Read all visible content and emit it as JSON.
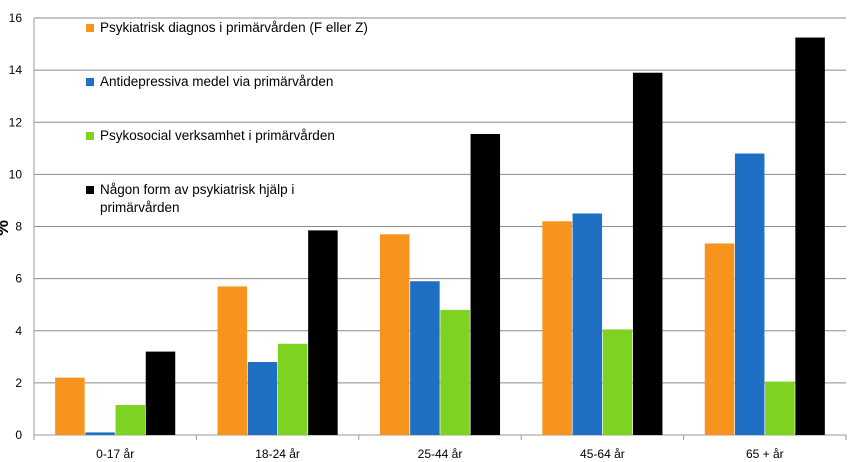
{
  "chart_data": {
    "type": "bar",
    "ylabel": "%",
    "ylim": [
      0,
      16
    ],
    "yticks": [
      "0",
      "2",
      "4",
      "6",
      "8",
      "10",
      "12",
      "14",
      "16"
    ],
    "grid": true,
    "legend_placement": "top-left",
    "categories": [
      "0-17 år",
      "18-24 år",
      "25-44 år",
      "45-64 år",
      "65 + år"
    ],
    "series": [
      {
        "name": "Psykiatrisk diagnos i primärvården (F eller Z)",
        "color": "#f7941d",
        "values": [
          2.2,
          5.7,
          7.7,
          8.2,
          7.35
        ]
      },
      {
        "name": "Antidepressiva medel via primärvården",
        "color": "#1f6fc5",
        "values": [
          0.1,
          2.8,
          5.9,
          8.5,
          10.8
        ]
      },
      {
        "name": "Psykosocial verksamhet i primärvården",
        "color": "#7ed321",
        "values": [
          1.15,
          3.5,
          4.8,
          4.05,
          2.05
        ]
      },
      {
        "name": "Någon form av psykiatrisk hjälp i primärvården",
        "name_lines": [
          "Någon form av psykiatrisk hjälp i",
          "primärvården"
        ],
        "color": "#000000",
        "values": [
          3.2,
          7.85,
          11.55,
          13.9,
          15.25
        ]
      }
    ]
  }
}
